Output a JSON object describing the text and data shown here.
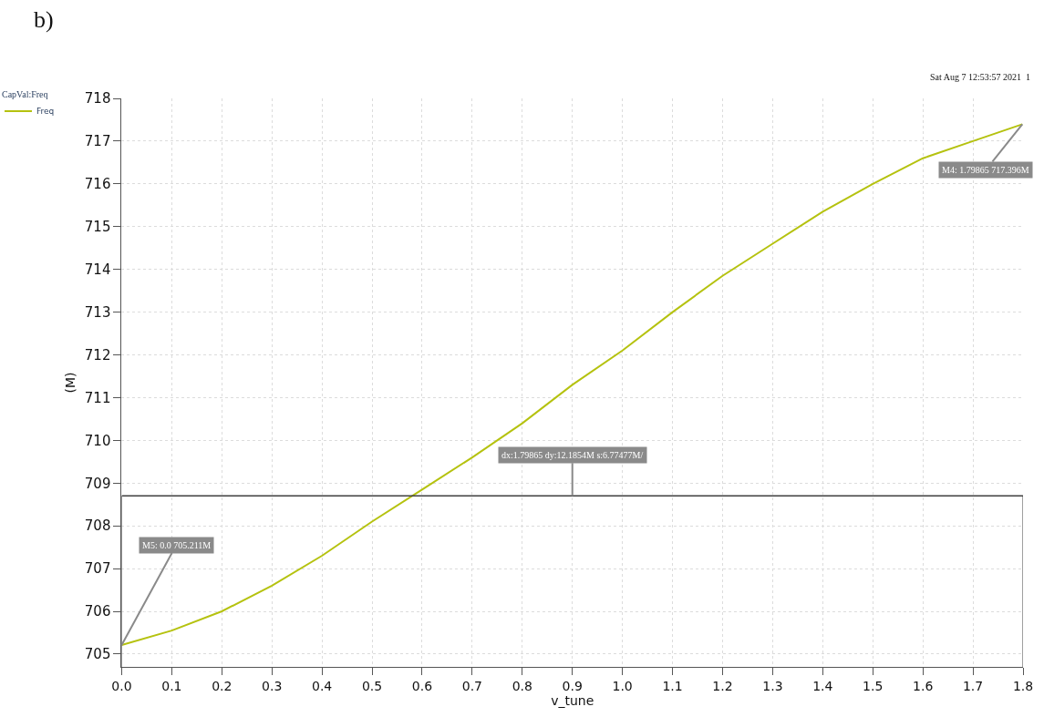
{
  "chart_data": {
    "type": "line",
    "xlabel": "v_tune",
    "ylabel": "(M)",
    "legend_title": "CapVal:Freq",
    "x": [
      0,
      0.1,
      0.2,
      0.3,
      0.4,
      0.5,
      0.6,
      0.7,
      0.8,
      0.9,
      1.0,
      1.1,
      1.2,
      1.3,
      1.4,
      1.5,
      1.6,
      1.7,
      1.79865
    ],
    "series": [
      {
        "name": "Freq",
        "color": "#b5c20f",
        "values": [
          705.211,
          705.55,
          706.0,
          706.6,
          707.3,
          708.1,
          708.85,
          709.6,
          710.4,
          711.3,
          712.1,
          713.0,
          713.85,
          714.6,
          715.35,
          716.0,
          716.6,
          717.0,
          717.396
        ]
      }
    ],
    "xlim": [
      0,
      1.8
    ],
    "ylim": [
      704.7,
      718
    ],
    "xticks": [
      {
        "value": 0,
        "label": "0.0"
      },
      0.1,
      0.2,
      0.3,
      0.4,
      0.5,
      0.6,
      0.7,
      0.8,
      0.9,
      {
        "value": 1.0,
        "label": "1.0"
      },
      1.1,
      1.2,
      1.3,
      1.4,
      1.5,
      1.6,
      1.7,
      1.8
    ],
    "yticks": [
      705,
      706,
      707,
      708,
      709,
      710,
      711,
      712,
      713,
      714,
      715,
      716,
      717,
      718
    ],
    "ref_lines": [
      {
        "axis": "y",
        "value": 708.7,
        "color": "#404040"
      }
    ],
    "annotations": [
      "b)",
      "Sat Aug 7 12:53:57 2021  1",
      {
        "text": "M5: 0.0 705.211M",
        "x": 0,
        "y": 705.211
      },
      {
        "text": "M4: 1.79865 717.396M",
        "x": 1.79865,
        "y": 717.396
      },
      {
        "text": "dx:1.79865 dy:12.1854M s:6.77477M/",
        "x": 0.9,
        "y": 708.7
      }
    ],
    "grid": true,
    "legend": "top left",
    "marker": "none",
    "line_style": "solid"
  }
}
